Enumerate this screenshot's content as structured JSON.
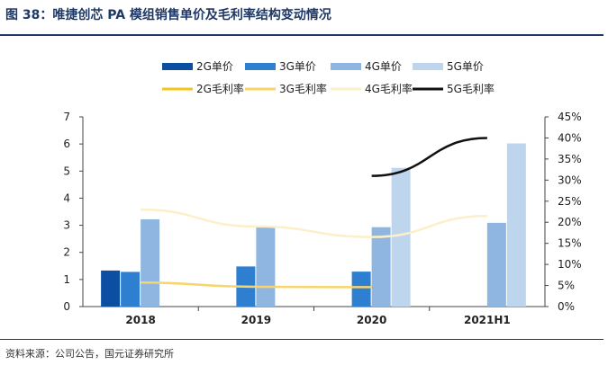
{
  "figure_title": "图 38：唯捷创芯 PA 模组销售单价及毛利率结构变动情况",
  "source": "资料来源：公司公告，国元证券研究所",
  "chart_data": {
    "type": "bar",
    "categories": [
      "2018",
      "2019",
      "2020",
      "2021H1"
    ],
    "bar_series": [
      {
        "name": "2G单价",
        "color": "#0b4ea2",
        "values": [
          1.33,
          null,
          null,
          null
        ]
      },
      {
        "name": "3G单价",
        "color": "#2f7fd1",
        "values": [
          1.28,
          1.48,
          1.29,
          null
        ]
      },
      {
        "name": "4G单价",
        "color": "#8fb6e0",
        "values": [
          3.22,
          2.95,
          2.93,
          3.09
        ]
      },
      {
        "name": "5G单价",
        "color": "#bdd6ee",
        "values": [
          null,
          null,
          5.12,
          6.02
        ]
      }
    ],
    "line_series": [
      {
        "name": "2G毛利率",
        "color": "#f5c518",
        "values": [
          null,
          null,
          null,
          null
        ]
      },
      {
        "name": "3G毛利率",
        "color": "#f7d56a",
        "values": [
          0.057,
          0.047,
          0.046,
          null
        ]
      },
      {
        "name": "4G毛利率",
        "color": "#fcefc9",
        "values": [
          0.23,
          0.19,
          0.165,
          0.215
        ]
      },
      {
        "name": "5G毛利率",
        "color": "#111111",
        "values": [
          null,
          null,
          0.31,
          0.4
        ]
      }
    ],
    "y_left": {
      "min": 0,
      "max": 7,
      "ticks": [
        "0",
        "1",
        "2",
        "3",
        "4",
        "5",
        "6",
        "7"
      ]
    },
    "y_right": {
      "min": 0,
      "max": 0.45,
      "ticks": [
        "0%",
        "5%",
        "10%",
        "15%",
        "20%",
        "25%",
        "30%",
        "35%",
        "40%",
        "45%"
      ]
    },
    "legend_position": "top",
    "grid": false
  }
}
